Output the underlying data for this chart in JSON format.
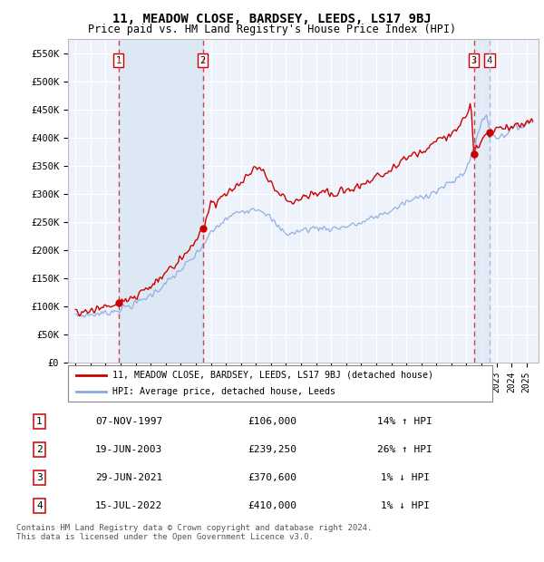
{
  "title": "11, MEADOW CLOSE, BARDSEY, LEEDS, LS17 9BJ",
  "subtitle": "Price paid vs. HM Land Registry's House Price Index (HPI)",
  "ylim": [
    0,
    575000
  ],
  "yticks": [
    0,
    50000,
    100000,
    150000,
    200000,
    250000,
    300000,
    350000,
    400000,
    450000,
    500000,
    550000
  ],
  "ytick_labels": [
    "£0",
    "£50K",
    "£100K",
    "£150K",
    "£200K",
    "£250K",
    "£300K",
    "£350K",
    "£400K",
    "£450K",
    "£500K",
    "£550K"
  ],
  "background_color": "#ffffff",
  "plot_bg_color": "#eef2fa",
  "grid_color": "#ffffff",
  "sale_color": "#cc0000",
  "hpi_color": "#88aadd",
  "vline_color_red": "#cc4444",
  "vline_color_blue": "#aabbdd",
  "shade_color_blue": "#dde8f5",
  "shade_color_red": "#f5e0e0",
  "transactions": [
    {
      "date": 1997.85,
      "price": 106000,
      "label": "1"
    },
    {
      "date": 2003.47,
      "price": 239250,
      "label": "2"
    },
    {
      "date": 2021.49,
      "price": 370600,
      "label": "3"
    },
    {
      "date": 2022.54,
      "price": 410000,
      "label": "4"
    }
  ],
  "table_rows": [
    {
      "num": "1",
      "date": "07-NOV-1997",
      "price": "£106,000",
      "hpi": "14% ↑ HPI"
    },
    {
      "num": "2",
      "date": "19-JUN-2003",
      "price": "£239,250",
      "hpi": "26% ↑ HPI"
    },
    {
      "num": "3",
      "date": "29-JUN-2021",
      "price": "£370,600",
      "hpi": "1% ↓ HPI"
    },
    {
      "num": "4",
      "date": "15-JUL-2022",
      "price": "£410,000",
      "hpi": "1% ↓ HPI"
    }
  ],
  "copyright": "Contains HM Land Registry data © Crown copyright and database right 2024.\nThis data is licensed under the Open Government Licence v3.0.",
  "legend_sale": "11, MEADOW CLOSE, BARDSEY, LEEDS, LS17 9BJ (detached house)",
  "legend_hpi": "HPI: Average price, detached house, Leeds"
}
